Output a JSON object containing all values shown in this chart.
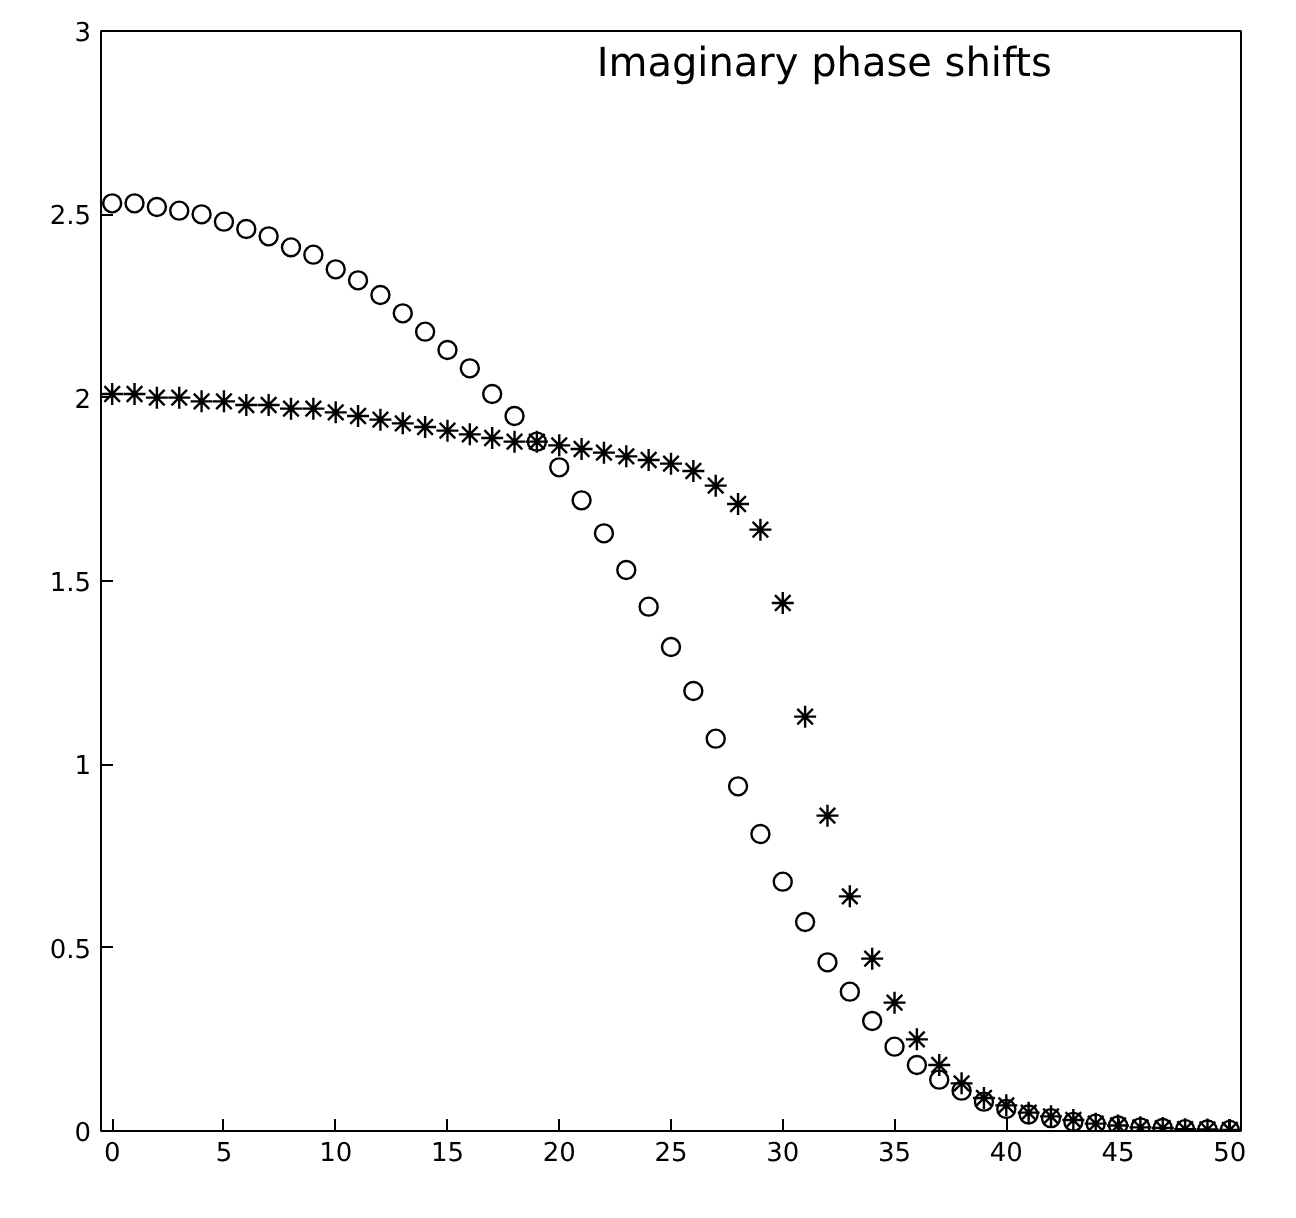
{
  "chart_data": {
    "type": "scatter",
    "title": "Imaginary phase  shifts",
    "x": [
      0,
      1,
      2,
      3,
      4,
      5,
      6,
      7,
      8,
      9,
      10,
      11,
      12,
      13,
      14,
      15,
      16,
      17,
      18,
      19,
      20,
      21,
      22,
      23,
      24,
      25,
      26,
      27,
      28,
      29,
      30,
      31,
      32,
      33,
      34,
      35,
      36,
      37,
      38,
      39,
      40,
      41,
      42,
      43,
      44,
      45,
      46,
      47,
      48,
      49,
      50
    ],
    "series": [
      {
        "color": "#000000",
        "marker": "circle",
        "values": [
          2.53,
          2.53,
          2.52,
          2.51,
          2.5,
          2.48,
          2.46,
          2.44,
          2.41,
          2.39,
          2.35,
          2.32,
          2.28,
          2.23,
          2.18,
          2.13,
          2.08,
          2.01,
          1.95,
          1.88,
          1.81,
          1.72,
          1.63,
          1.53,
          1.43,
          1.32,
          1.2,
          1.07,
          0.94,
          0.81,
          0.68,
          0.57,
          0.46,
          0.38,
          0.3,
          0.23,
          0.18,
          0.14,
          0.11,
          0.08,
          0.06,
          0.045,
          0.035,
          0.025,
          0.02,
          0.015,
          0.01,
          0.008,
          0.005,
          0.004,
          0.003
        ]
      },
      {
        "color": "#000000",
        "marker": "cross",
        "values": [
          2.01,
          2.01,
          2.0,
          2.0,
          1.99,
          1.99,
          1.98,
          1.98,
          1.97,
          1.97,
          1.96,
          1.95,
          1.94,
          1.93,
          1.92,
          1.91,
          1.9,
          1.89,
          1.88,
          1.88,
          1.87,
          1.86,
          1.85,
          1.84,
          1.83,
          1.82,
          1.8,
          1.76,
          1.71,
          1.64,
          1.44,
          1.13,
          0.86,
          0.64,
          0.47,
          0.35,
          0.25,
          0.18,
          0.13,
          0.09,
          0.07,
          0.05,
          0.04,
          0.03,
          0.02,
          0.015,
          0.01,
          0.008,
          0.005,
          0.004,
          0.003
        ]
      }
    ],
    "xlim": [
      -0.5,
      50.5
    ],
    "ylim": [
      0,
      3
    ],
    "xticks": [
      0,
      5,
      10,
      15,
      20,
      25,
      30,
      35,
      40,
      45,
      50
    ],
    "yticks": [
      0,
      0.5,
      1,
      1.5,
      2,
      2.5,
      3
    ],
    "grid": false
  }
}
